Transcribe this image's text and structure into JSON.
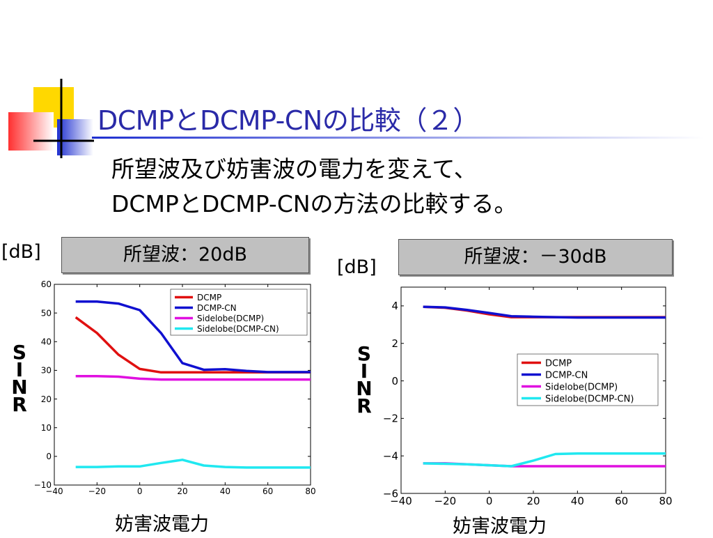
{
  "slide": {
    "title": "DCMPとDCMP-CNの比較（２）",
    "subtitle_line1": "所望波及び妨害波の電力を変えて、",
    "subtitle_line2": "DCMPとDCMP-CNの方法の比較する。",
    "colors": {
      "title": "#2a2aa8"
    }
  },
  "panels": [
    {
      "label": "所望波：20dB",
      "unit": "[dB]",
      "ylabel": [
        "S",
        "I",
        "N",
        "R"
      ],
      "xlabel": "妨害波電力"
    },
    {
      "label": "所望波：－30dB",
      "unit": "[dB]",
      "ylabel": [
        "S",
        "I",
        "N",
        "R"
      ],
      "xlabel": "妨害波電力"
    }
  ],
  "chart_data": [
    {
      "type": "line",
      "xlim": [
        -40,
        80
      ],
      "ylim": [
        -10,
        60
      ],
      "xticks": [
        -40,
        -20,
        0,
        20,
        40,
        60,
        80
      ],
      "yticks": [
        -10,
        0,
        10,
        20,
        30,
        40,
        50,
        60
      ],
      "legend_position": "top-right",
      "series": [
        {
          "name": "DCMP",
          "color": "#e01010",
          "x": [
            -30,
            -20,
            -10,
            0,
            10,
            20,
            30,
            40,
            50,
            60,
            70,
            80
          ],
          "y": [
            48.5,
            43,
            35.5,
            30.5,
            29.3,
            29.3,
            29.3,
            29.3,
            29.3,
            29.3,
            29.3,
            29.3
          ]
        },
        {
          "name": "DCMP-CN",
          "color": "#1010d0",
          "x": [
            -30,
            -20,
            -10,
            0,
            10,
            20,
            30,
            40,
            50,
            60,
            70,
            80
          ],
          "y": [
            54,
            54,
            53.3,
            51,
            43,
            32.5,
            30.2,
            30.4,
            29.8,
            29.4,
            29.4,
            29.4
          ]
        },
        {
          "name": "Sidelobe(DCMP)",
          "color": "#e010e0",
          "x": [
            -30,
            -20,
            -10,
            0,
            10,
            20,
            30,
            40,
            50,
            60,
            70,
            80
          ],
          "y": [
            28,
            28,
            27.8,
            27.1,
            26.8,
            26.8,
            26.8,
            26.8,
            26.8,
            26.8,
            26.8,
            26.8
          ]
        },
        {
          "name": "Sidelobe(DCMP-CN)",
          "color": "#20e8f0",
          "x": [
            -30,
            -20,
            -10,
            0,
            10,
            20,
            30,
            40,
            50,
            60,
            70,
            80
          ],
          "y": [
            -3.7,
            -3.7,
            -3.5,
            -3.5,
            -2.3,
            -1.2,
            -3.2,
            -3.7,
            -3.9,
            -3.9,
            -3.9,
            -3.9
          ]
        }
      ]
    },
    {
      "type": "line",
      "xlim": [
        -40,
        80
      ],
      "ylim": [
        -6,
        5
      ],
      "xticks": [
        -40,
        -20,
        0,
        20,
        40,
        60,
        80
      ],
      "yticks": [
        -6,
        -4,
        -2,
        0,
        2,
        4
      ],
      "legend_position": "center-right",
      "series": [
        {
          "name": "DCMP",
          "color": "#e01010",
          "x": [
            -30,
            -20,
            -10,
            0,
            10,
            20,
            30,
            40,
            50,
            60,
            70,
            80
          ],
          "y": [
            3.95,
            3.9,
            3.75,
            3.55,
            3.4,
            3.4,
            3.4,
            3.4,
            3.4,
            3.4,
            3.4,
            3.4
          ]
        },
        {
          "name": "DCMP-CN",
          "color": "#1010d0",
          "x": [
            -30,
            -20,
            -10,
            0,
            10,
            20,
            30,
            40,
            50,
            60,
            70,
            80
          ],
          "y": [
            3.95,
            3.92,
            3.78,
            3.62,
            3.45,
            3.42,
            3.4,
            3.38,
            3.38,
            3.38,
            3.38,
            3.38
          ]
        },
        {
          "name": "Sidelobe(DCMP)",
          "color": "#e010e0",
          "x": [
            -30,
            -20,
            -10,
            0,
            10,
            20,
            30,
            40,
            50,
            60,
            70,
            80
          ],
          "y": [
            -4.4,
            -4.4,
            -4.45,
            -4.5,
            -4.55,
            -4.55,
            -4.55,
            -4.55,
            -4.55,
            -4.55,
            -4.55,
            -4.55
          ]
        },
        {
          "name": "Sidelobe(DCMP-CN)",
          "color": "#20e8f0",
          "x": [
            -30,
            -20,
            -10,
            0,
            10,
            20,
            30,
            40,
            50,
            60,
            70,
            80
          ],
          "y": [
            -4.4,
            -4.42,
            -4.45,
            -4.5,
            -4.55,
            -4.25,
            -3.9,
            -3.87,
            -3.87,
            -3.87,
            -3.87,
            -3.87
          ]
        }
      ]
    }
  ]
}
